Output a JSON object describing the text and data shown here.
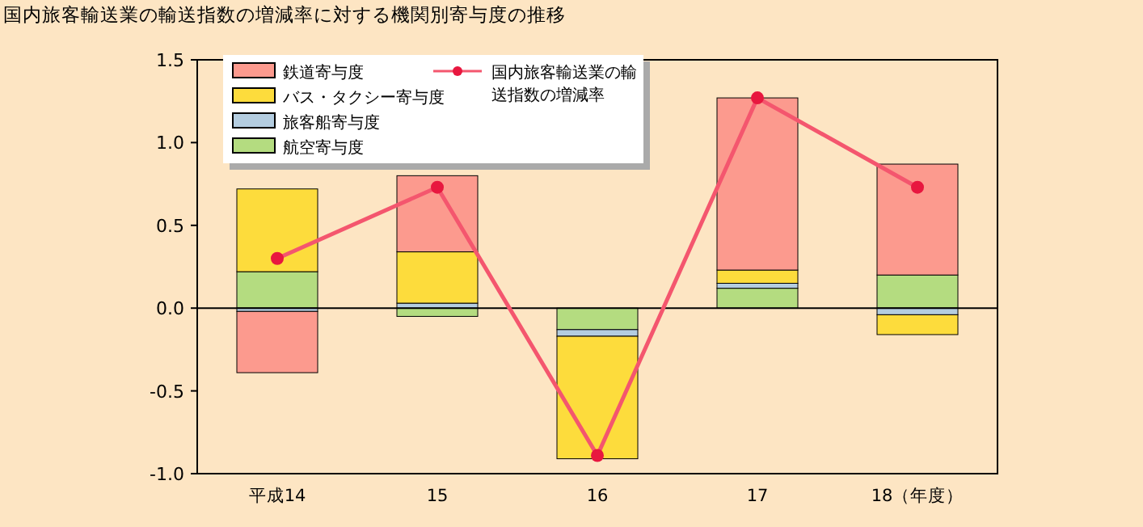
{
  "chart_data": {
    "type": "bar",
    "stacked": true,
    "title": "国内旅客輸送業の輸送指数の増減率に対する機関別寄与度の推移",
    "categories": [
      "平成14",
      "15",
      "16",
      "17",
      "18（年度）"
    ],
    "series": [
      {
        "name": "航空寄与度",
        "color": "#b4dc80",
        "values": [
          0.22,
          -0.05,
          -0.13,
          0.12,
          0.2
        ]
      },
      {
        "name": "旅客船寄与度",
        "color": "#b4cde0",
        "values": [
          -0.02,
          0.03,
          -0.04,
          0.03,
          -0.04
        ]
      },
      {
        "name": "バス・タクシー寄与度",
        "color": "#fddc3c",
        "values": [
          0.5,
          0.31,
          -0.74,
          0.08,
          -0.12
        ]
      },
      {
        "name": "鉄道寄与度",
        "color": "#fc9a8e",
        "values": [
          -0.37,
          0.46,
          0,
          1.04,
          0.67
        ]
      },
      {
        "name": "国内旅客輸送業の輸送指数の増減率",
        "type": "line",
        "color": "#f4566e",
        "marker": "circle",
        "values": [
          0.3,
          0.73,
          -0.89,
          1.27,
          0.73
        ]
      }
    ],
    "ylim": [
      -1.0,
      1.5
    ],
    "yticks": [
      {
        "value": -1.0,
        "label": "-1.0"
      },
      {
        "value": -0.5,
        "label": "-0.5"
      },
      {
        "value": 0,
        "label": "0.0"
      },
      {
        "value": 0.5,
        "label": "0.5"
      },
      {
        "value": 1.0,
        "label": "1.0"
      },
      {
        "value": 1.5,
        "label": "1.5"
      }
    ],
    "legend": "top left"
  }
}
